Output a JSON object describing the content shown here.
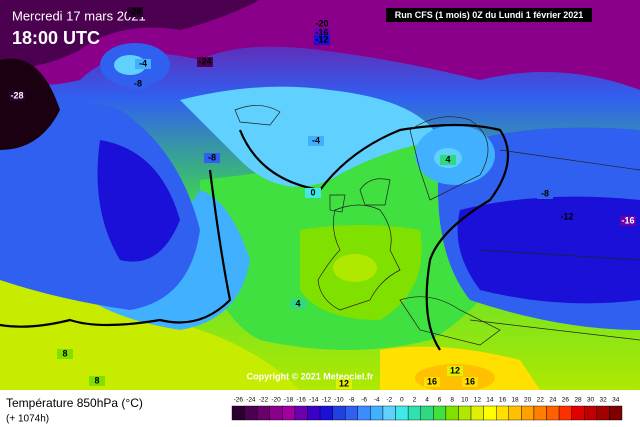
{
  "header": {
    "date": "Mercredi 17 mars 2021",
    "time": "18:00 UTC",
    "run": "Run CFS (1 mois) 0Z du Lundi 1 février 2021",
    "copyright": "Copyright © 2021 Meteociel.fr"
  },
  "footer": {
    "title": "Température 850hPa (°C)",
    "lead": "(+ 1074h)"
  },
  "scale": {
    "ticks": [
      -26,
      -24,
      -22,
      -20,
      -18,
      -16,
      -14,
      -12,
      -10,
      -8,
      -6,
      -4,
      -2,
      0,
      2,
      4,
      6,
      8,
      10,
      12,
      14,
      16,
      18,
      20,
      22,
      24,
      26,
      28,
      30,
      32,
      34
    ],
    "colors": [
      "#2a0030",
      "#4b0050",
      "#6a006a",
      "#8a008a",
      "#a000a0",
      "#6a00b0",
      "#3a00c8",
      "#1a10d8",
      "#2040e0",
      "#3060f0",
      "#3c8cff",
      "#40b0ff",
      "#60d0ff",
      "#40e8e8",
      "#30e0b0",
      "#30d880",
      "#40e040",
      "#80e000",
      "#b0e800",
      "#e0f000",
      "#ffff00",
      "#ffe000",
      "#ffc000",
      "#ffa000",
      "#ff8000",
      "#ff6000",
      "#ff3000",
      "#e00000",
      "#c00000",
      "#a00000",
      "#800000"
    ]
  },
  "contour_labels": [
    -28,
    -20,
    -16,
    -12,
    -24,
    -4,
    -8,
    -28,
    -8,
    -4,
    0,
    4,
    -8,
    -12,
    -16,
    4,
    8,
    8,
    12,
    16,
    16,
    12
  ]
}
